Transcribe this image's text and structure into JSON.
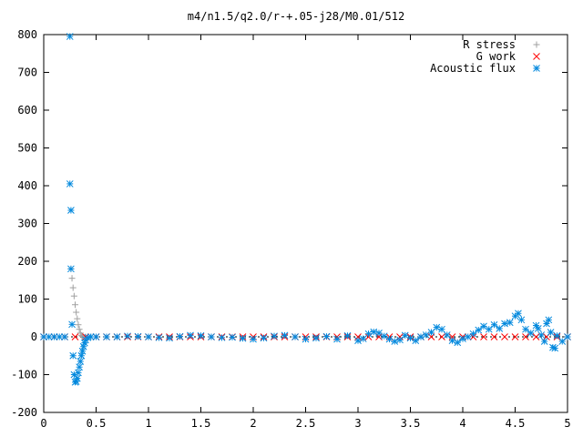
{
  "chart_data": {
    "type": "scatter",
    "title": "m4/n1.5/q2.0/r-+.05-j28/M0.01/512",
    "xlabel": "",
    "ylabel": "",
    "xlim": [
      0,
      5
    ],
    "ylim": [
      -200,
      800
    ],
    "x_ticks": [
      "0",
      "0.5",
      "1",
      "1.5",
      "2",
      "2.5",
      "3",
      "3.5",
      "4",
      "4.5",
      "5"
    ],
    "x_tick_values": [
      0,
      0.5,
      1,
      1.5,
      2,
      2.5,
      3,
      3.5,
      4,
      4.5,
      5
    ],
    "y_ticks": [
      "-200",
      "-100",
      "0",
      "100",
      "200",
      "300",
      "400",
      "500",
      "600",
      "700",
      "800"
    ],
    "y_tick_values": [
      -200,
      -100,
      0,
      100,
      200,
      300,
      400,
      500,
      600,
      700,
      800
    ],
    "grid": false,
    "legend_position": "top-right",
    "series": [
      {
        "name": "R stress",
        "marker": "plus",
        "color": "#a0a0a0",
        "points": [
          [
            0.26,
            180
          ],
          [
            0.27,
            155
          ],
          [
            0.28,
            130
          ],
          [
            0.29,
            108
          ],
          [
            0.3,
            85
          ],
          [
            0.31,
            65
          ],
          [
            0.32,
            48
          ],
          [
            0.33,
            32
          ],
          [
            0.34,
            20
          ],
          [
            0.35,
            10
          ],
          [
            0.36,
            4
          ],
          [
            0.37,
            1
          ],
          [
            0.4,
            0
          ],
          [
            0.45,
            0
          ],
          [
            0.5,
            0
          ]
        ]
      },
      {
        "name": "G work",
        "marker": "cross",
        "color": "#ff0000",
        "points": [
          [
            0.0,
            0
          ],
          [
            0.1,
            0
          ],
          [
            0.2,
            0
          ],
          [
            0.3,
            0
          ],
          [
            0.4,
            0
          ],
          [
            0.5,
            0
          ],
          [
            0.6,
            0
          ],
          [
            0.7,
            0
          ],
          [
            0.8,
            0
          ],
          [
            0.9,
            0
          ],
          [
            1.0,
            0
          ],
          [
            1.1,
            0
          ],
          [
            1.2,
            0
          ],
          [
            1.3,
            0
          ],
          [
            1.4,
            0
          ],
          [
            1.5,
            0
          ],
          [
            1.6,
            0
          ],
          [
            1.7,
            0
          ],
          [
            1.8,
            0
          ],
          [
            1.9,
            0
          ],
          [
            2.0,
            0
          ],
          [
            2.1,
            0
          ],
          [
            2.2,
            0
          ],
          [
            2.3,
            0
          ],
          [
            2.4,
            0
          ],
          [
            2.5,
            0
          ],
          [
            2.6,
            0
          ],
          [
            2.7,
            0
          ],
          [
            2.8,
            0
          ],
          [
            2.9,
            0
          ],
          [
            3.0,
            0
          ],
          [
            3.1,
            0
          ],
          [
            3.2,
            0
          ],
          [
            3.3,
            0
          ],
          [
            3.4,
            0
          ],
          [
            3.5,
            0
          ],
          [
            3.6,
            0
          ],
          [
            3.7,
            0
          ],
          [
            3.8,
            0
          ],
          [
            3.9,
            0
          ],
          [
            4.0,
            0
          ],
          [
            4.1,
            0
          ],
          [
            4.2,
            0
          ],
          [
            4.3,
            0
          ],
          [
            4.4,
            0
          ],
          [
            4.5,
            0
          ],
          [
            4.6,
            0
          ],
          [
            4.7,
            0
          ],
          [
            4.8,
            0
          ],
          [
            4.9,
            0
          ],
          [
            5.0,
            0
          ]
        ]
      },
      {
        "name": "Acoustic flux",
        "marker": "star",
        "color": "#0088dd",
        "points": [
          [
            0.0,
            0
          ],
          [
            0.05,
            0
          ],
          [
            0.1,
            0
          ],
          [
            0.15,
            0
          ],
          [
            0.2,
            0
          ],
          [
            0.25,
            795
          ],
          [
            0.25,
            405
          ],
          [
            0.26,
            335
          ],
          [
            0.26,
            180
          ],
          [
            0.27,
            33
          ],
          [
            0.28,
            -50
          ],
          [
            0.29,
            -100
          ],
          [
            0.3,
            -120
          ],
          [
            0.31,
            -118
          ],
          [
            0.32,
            -110
          ],
          [
            0.33,
            -95
          ],
          [
            0.34,
            -80
          ],
          [
            0.35,
            -65
          ],
          [
            0.36,
            -50
          ],
          [
            0.37,
            -38
          ],
          [
            0.38,
            -26
          ],
          [
            0.39,
            -16
          ],
          [
            0.4,
            -8
          ],
          [
            0.42,
            -2
          ],
          [
            0.45,
            0
          ],
          [
            0.5,
            0
          ],
          [
            0.6,
            0
          ],
          [
            0.7,
            0
          ],
          [
            0.8,
            2
          ],
          [
            0.9,
            1
          ],
          [
            1.0,
            0
          ],
          [
            1.1,
            -2
          ],
          [
            1.2,
            -3
          ],
          [
            1.3,
            1
          ],
          [
            1.4,
            4
          ],
          [
            1.5,
            3
          ],
          [
            1.6,
            0
          ],
          [
            1.7,
            -2
          ],
          [
            1.8,
            -1
          ],
          [
            1.9,
            -4
          ],
          [
            2.0,
            -6
          ],
          [
            2.1,
            -3
          ],
          [
            2.2,
            2
          ],
          [
            2.3,
            4
          ],
          [
            2.4,
            0
          ],
          [
            2.5,
            -6
          ],
          [
            2.6,
            -3
          ],
          [
            2.7,
            1
          ],
          [
            2.8,
            -6
          ],
          [
            2.9,
            3
          ],
          [
            3.0,
            -10
          ],
          [
            3.05,
            -5
          ],
          [
            3.1,
            8
          ],
          [
            3.15,
            13
          ],
          [
            3.2,
            10
          ],
          [
            3.25,
            2
          ],
          [
            3.3,
            -6
          ],
          [
            3.35,
            -12
          ],
          [
            3.4,
            -8
          ],
          [
            3.45,
            4
          ],
          [
            3.5,
            -3
          ],
          [
            3.55,
            -10
          ],
          [
            3.6,
            0
          ],
          [
            3.65,
            5
          ],
          [
            3.7,
            12
          ],
          [
            3.75,
            25
          ],
          [
            3.8,
            20
          ],
          [
            3.85,
            5
          ],
          [
            3.9,
            -10
          ],
          [
            3.95,
            -15
          ],
          [
            4.0,
            -5
          ],
          [
            4.05,
            0
          ],
          [
            4.1,
            8
          ],
          [
            4.15,
            18
          ],
          [
            4.2,
            28
          ],
          [
            4.25,
            20
          ],
          [
            4.3,
            32
          ],
          [
            4.35,
            22
          ],
          [
            4.4,
            35
          ],
          [
            4.45,
            38
          ],
          [
            4.5,
            55
          ],
          [
            4.53,
            62
          ],
          [
            4.56,
            45
          ],
          [
            4.6,
            20
          ],
          [
            4.65,
            10
          ],
          [
            4.7,
            30
          ],
          [
            4.72,
            22
          ],
          [
            4.75,
            5
          ],
          [
            4.78,
            -12
          ],
          [
            4.8,
            35
          ],
          [
            4.82,
            45
          ],
          [
            4.84,
            12
          ],
          [
            4.86,
            -28
          ],
          [
            4.88,
            -30
          ],
          [
            4.9,
            3
          ],
          [
            4.95,
            -12
          ],
          [
            5.0,
            0
          ]
        ]
      }
    ]
  }
}
